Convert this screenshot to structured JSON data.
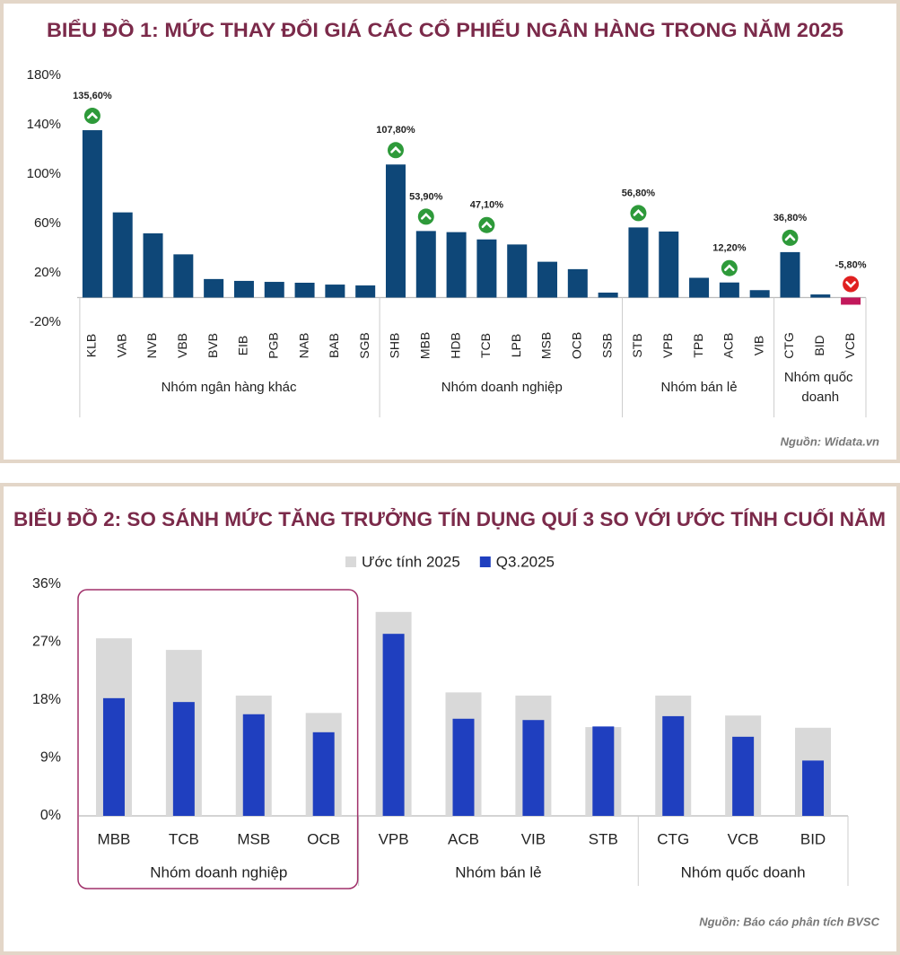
{
  "chart_data": [
    {
      "type": "bar",
      "title": "BIỂU ĐỒ 1: MỨC THAY ĐỔI GIÁ CÁC CỔ PHIẾU NGÂN HÀNG TRONG NĂM 2025",
      "groups": [
        {
          "name": "Nhóm ngân hàng khác",
          "categories": [
            "KLB",
            "VAB",
            "NVB",
            "VBB",
            "BVB",
            "EIB",
            "PGB",
            "NAB",
            "BAB",
            "SGB"
          ]
        },
        {
          "name": "Nhóm doanh nghiệp",
          "categories": [
            "SHB",
            "MBB",
            "HDB",
            "TCB",
            "LPB",
            "MSB",
            "OCB",
            "SSB"
          ]
        },
        {
          "name": "Nhóm bán lẻ",
          "categories": [
            "STB",
            "VPB",
            "TPB",
            "ACB",
            "VIB"
          ]
        },
        {
          "name": "Nhóm quốc doanh",
          "categories": [
            "CTG",
            "BID",
            "VCB"
          ]
        }
      ],
      "values": [
        135.6,
        69,
        52,
        35,
        15,
        13.5,
        12.7,
        12,
        10.5,
        9.8,
        107.8,
        53.9,
        53,
        47.1,
        43,
        29,
        23,
        4,
        56.8,
        53.5,
        16,
        12.2,
        6,
        36.8,
        2.5,
        -5.8
      ],
      "value_labels": [
        "135,60%",
        null,
        null,
        null,
        null,
        null,
        null,
        null,
        null,
        null,
        "107,80%",
        "53,90%",
        null,
        "47,10%",
        null,
        null,
        null,
        null,
        "56,80%",
        null,
        null,
        "12,20%",
        null,
        "36,80%",
        null,
        "-5,80%"
      ],
      "color": "#0e4778",
      "negative_color": "#c2185b",
      "ylim": [
        -20,
        180
      ],
      "yticks": [
        {
          "value": -20,
          "label": "-20%"
        },
        {
          "value": 20,
          "label": "20%"
        },
        {
          "value": 60,
          "label": "60%"
        },
        {
          "value": 100,
          "label": "100%"
        },
        {
          "value": 140,
          "label": "140%"
        },
        {
          "value": 180,
          "label": "180%"
        }
      ],
      "grid": false,
      "source": "Nguồn: Widata.vn"
    },
    {
      "type": "overlap_bar",
      "title": "BIỂU ĐỒ 2: SO SÁNH MỨC TĂNG TRƯỞNG TÍN DỤNG QUÍ 3 SO VỚI ƯỚC TÍNH CUỐI NĂM",
      "groups": [
        {
          "name": "Nhóm doanh nghiệp",
          "categories": [
            "MBB",
            "TCB",
            "MSB",
            "OCB"
          ],
          "highlight": true
        },
        {
          "name": "Nhóm bán lẻ",
          "categories": [
            "VPB",
            "ACB",
            "VIB",
            "STB"
          ]
        },
        {
          "name": "Nhóm quốc doanh",
          "categories": [
            "CTG",
            "VCB",
            "BID"
          ]
        }
      ],
      "series": [
        {
          "name": "Ước tính 2025",
          "color": "#d9d9d9",
          "values": [
            27.6,
            25.8,
            18.7,
            16,
            31.7,
            19.2,
            18.7,
            13.8,
            18.7,
            15.6,
            13.7
          ]
        },
        {
          "name": "Q3.2025",
          "color": "#1f3fbf",
          "values": [
            18.3,
            17.7,
            15.8,
            13,
            28.3,
            15.1,
            14.9,
            13.9,
            15.5,
            12.3,
            8.6
          ]
        }
      ],
      "ylim": [
        0,
        36
      ],
      "yticks": [
        {
          "value": 0,
          "label": "0%"
        },
        {
          "value": 9,
          "label": "9%"
        },
        {
          "value": 18,
          "label": "18%"
        },
        {
          "value": 27,
          "label": "27%"
        },
        {
          "value": 36,
          "label": "36%"
        }
      ],
      "grid": false,
      "legend": "top",
      "source": "Nguồn: Báo cáo phân tích BVSC"
    }
  ]
}
